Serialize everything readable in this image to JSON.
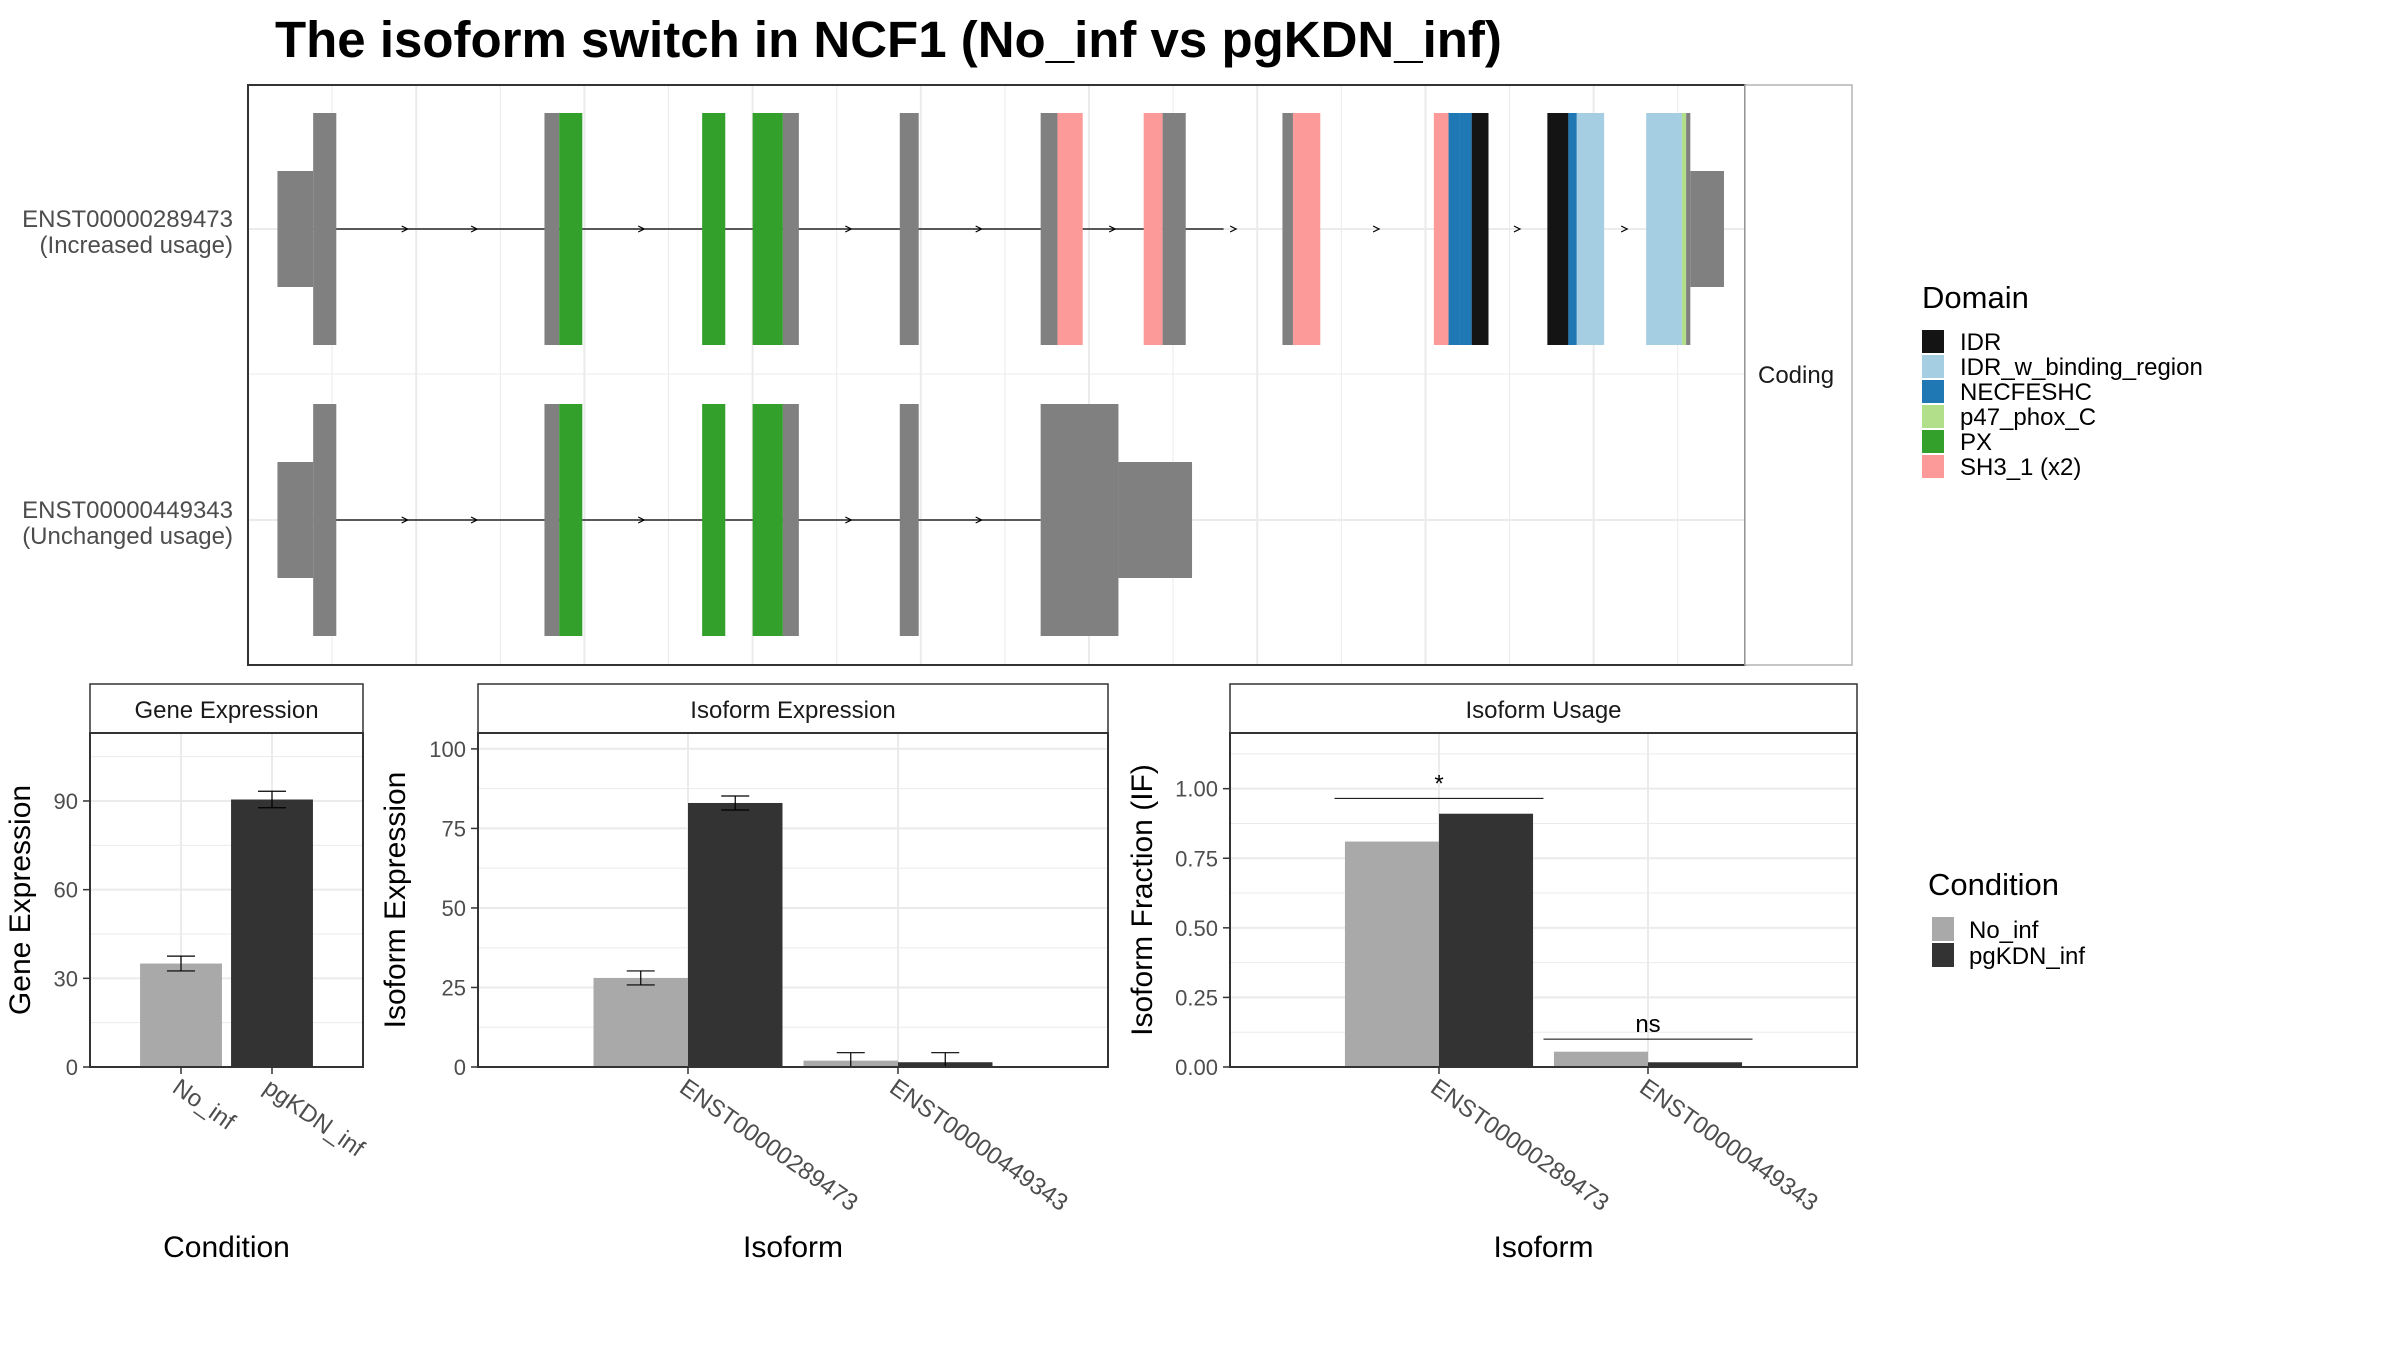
{
  "title": "The isoform switch in NCF1 (No_inf vs pgKDN_inf)",
  "colors": {
    "no_inf": "#A9A9A9",
    "pgkdn_inf": "#333333",
    "intron": "#000000",
    "exon_default": "#808080",
    "grid": "#EBEBEB",
    "panel_border": "#333333",
    "strip_border": "#B3B3B3",
    "axis_text": "#4D4D4D"
  },
  "chart_data": [
    {
      "type": "gene-structure",
      "strip_label": "Coding",
      "transcripts": [
        {
          "id": "ENST00000289473",
          "usage_note": "(Increased usage)",
          "cds_start": 1.55,
          "intron_span": [
            1.55,
            23.2
          ],
          "segments": [
            {
              "start": 0.7,
              "end": 1.55,
              "part": "utr",
              "domain": null
            },
            {
              "start": 1.55,
              "end": 2.1,
              "part": "cds",
              "domain": null
            },
            {
              "start": 7.05,
              "end": 7.4,
              "part": "cds",
              "domain": null
            },
            {
              "start": 7.4,
              "end": 7.95,
              "part": "cds",
              "domain": "PX"
            },
            {
              "start": 10.8,
              "end": 11.35,
              "part": "cds",
              "domain": "PX"
            },
            {
              "start": 12.0,
              "end": 12.72,
              "part": "cds",
              "domain": "PX"
            },
            {
              "start": 12.72,
              "end": 13.1,
              "part": "cds",
              "domain": null
            },
            {
              "start": 15.5,
              "end": 15.95,
              "part": "cds",
              "domain": null
            },
            {
              "start": 18.85,
              "end": 19.25,
              "part": "cds",
              "domain": null
            },
            {
              "start": 19.25,
              "end": 19.85,
              "part": "cds",
              "domain": "SH3_1 (x2)"
            },
            {
              "start": 21.3,
              "end": 21.75,
              "part": "cds",
              "domain": "SH3_1 (x2)"
            },
            {
              "start": 21.75,
              "end": 22.3,
              "part": "cds",
              "domain": null
            },
            {
              "start": 24.6,
              "end": 24.85,
              "part": "cds",
              "domain": null
            },
            {
              "start": 24.85,
              "end": 25.5,
              "part": "cds",
              "domain": "SH3_1 (x2)"
            },
            {
              "start": 28.2,
              "end": 28.55,
              "part": "cds",
              "domain": "SH3_1 (x2)"
            },
            {
              "start": 28.55,
              "end": 28.8,
              "part": "cds",
              "domain": "NECFESHC"
            },
            {
              "start": 28.8,
              "end": 29.1,
              "part": "cds",
              "domain": "NECFESHC"
            },
            {
              "start": 29.1,
              "end": 29.5,
              "part": "cds",
              "domain": "IDR"
            },
            {
              "start": 30.9,
              "end": 31.4,
              "part": "cds",
              "domain": "IDR"
            },
            {
              "start": 31.4,
              "end": 31.6,
              "part": "cds",
              "domain": "NECFESHC"
            },
            {
              "start": 31.6,
              "end": 32.25,
              "part": "cds",
              "domain": "IDR_w_binding_region"
            },
            {
              "start": 33.25,
              "end": 34.1,
              "part": "cds",
              "domain": "IDR_w_binding_region"
            },
            {
              "start": 34.1,
              "end": 34.2,
              "part": "cds",
              "domain": "p47_phox_C"
            },
            {
              "start": 34.2,
              "end": 34.3,
              "part": "cds",
              "domain": null
            },
            {
              "start": 34.3,
              "end": 35.1,
              "part": "utr",
              "domain": null
            }
          ]
        },
        {
          "id": "ENST00000449343",
          "usage_note": "(Unchanged usage)",
          "cds_start": 1.55,
          "intron_span": [
            1.55,
            18.85
          ],
          "segments": [
            {
              "start": 0.7,
              "end": 1.55,
              "part": "utr",
              "domain": null
            },
            {
              "start": 1.55,
              "end": 2.1,
              "part": "cds",
              "domain": null
            },
            {
              "start": 7.05,
              "end": 7.4,
              "part": "cds",
              "domain": null
            },
            {
              "start": 7.4,
              "end": 7.95,
              "part": "cds",
              "domain": "PX"
            },
            {
              "start": 10.8,
              "end": 11.35,
              "part": "cds",
              "domain": "PX"
            },
            {
              "start": 12.0,
              "end": 12.72,
              "part": "cds",
              "domain": "PX"
            },
            {
              "start": 12.72,
              "end": 13.1,
              "part": "cds",
              "domain": null
            },
            {
              "start": 15.5,
              "end": 15.95,
              "part": "cds",
              "domain": null
            },
            {
              "start": 18.85,
              "end": 20.7,
              "part": "cds",
              "domain": null
            },
            {
              "start": 20.7,
              "end": 22.45,
              "part": "utr",
              "domain": null
            }
          ]
        }
      ],
      "legend": {
        "title": "Domain",
        "entries": [
          {
            "label": "IDR",
            "color": "#141414"
          },
          {
            "label": "IDR_w_binding_region",
            "color": "#A6CEE3"
          },
          {
            "label": "NECFESHC",
            "color": "#1F78B4"
          },
          {
            "label": "p47_phox_C",
            "color": "#B2DF8A"
          },
          {
            "label": "PX",
            "color": "#33A02C"
          },
          {
            "label": "SH3_1 (x2)",
            "color": "#FB9A99"
          }
        ]
      }
    },
    {
      "type": "bar",
      "strip": "Gene Expression",
      "xlabel": "Condition",
      "ylabel": "Gene Expression",
      "ylim": [
        0,
        113
      ],
      "yticks": [
        0,
        30,
        60,
        90
      ],
      "categories": [
        "No_inf",
        "pgKDN_inf"
      ],
      "values": [
        35,
        90.5
      ],
      "errors": [
        2.5,
        2.8
      ]
    },
    {
      "type": "bar",
      "strip": "Isoform Expression",
      "xlabel": "Isoform",
      "ylabel": "Isoform Expression",
      "ylim": [
        0,
        105
      ],
      "yticks": [
        0,
        25,
        50,
        75,
        100
      ],
      "categories": [
        "ENST00000289473",
        "ENST00000449343"
      ],
      "series": [
        {
          "name": "No_inf",
          "values": [
            28,
            2
          ],
          "errors": [
            2.2,
            2.5
          ]
        },
        {
          "name": "pgKDN_inf",
          "values": [
            83,
            1.5
          ],
          "errors": [
            2.2,
            3.0
          ]
        }
      ]
    },
    {
      "type": "bar",
      "strip": "Isoform Usage",
      "xlabel": "Isoform",
      "ylabel": "Isoform Fraction (IF)",
      "ylim": [
        0,
        1.2
      ],
      "yticks": [
        0,
        0.25,
        0.5,
        0.75,
        1.0
      ],
      "ytick_labels": [
        "0.00",
        "0.25",
        "0.50",
        "0.75",
        "1.00"
      ],
      "categories": [
        "ENST00000289473",
        "ENST00000449343"
      ],
      "series": [
        {
          "name": "No_inf",
          "values": [
            0.81,
            0.055
          ]
        },
        {
          "name": "pgKDN_inf",
          "values": [
            0.91,
            0.017
          ]
        }
      ],
      "significance": [
        {
          "category": "ENST00000289473",
          "label": "*",
          "y": 0.965
        },
        {
          "category": "ENST00000449343",
          "label": "ns",
          "y": 0.1
        }
      ]
    }
  ],
  "condition_legend": {
    "title": "Condition",
    "entries": [
      {
        "label": "No_inf",
        "color": "#A9A9A9"
      },
      {
        "label": "pgKDN_inf",
        "color": "#333333"
      }
    ]
  }
}
